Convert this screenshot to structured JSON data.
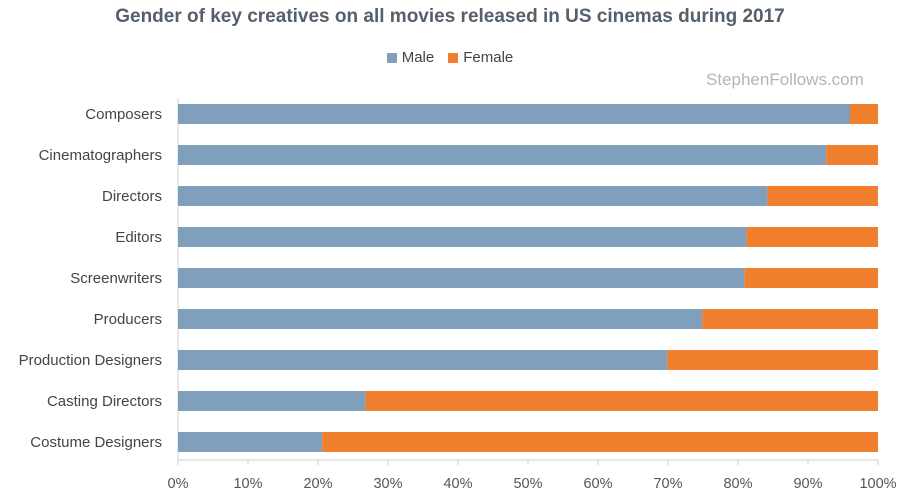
{
  "chart_data": {
    "type": "bar",
    "orientation": "horizontal",
    "stacked": true,
    "title": "Gender of key creatives on all movies released in US cinemas during 2017",
    "categories": [
      "Composers",
      "Cinematographers",
      "Directors",
      "Editors",
      "Screenwriters",
      "Producers",
      "Production Designers",
      "Casting Directors",
      "Costume Designers"
    ],
    "series": [
      {
        "name": "Male",
        "color": "#7f9fbd",
        "values": [
          96,
          92.6,
          84.2,
          81.2,
          80.9,
          74.9,
          69.9,
          26.8,
          20.6
        ]
      },
      {
        "name": "Female",
        "color": "#f07f2e",
        "values": [
          4,
          7.4,
          15.8,
          18.8,
          19.1,
          25.1,
          30.1,
          73.2,
          79.4
        ]
      }
    ],
    "xticks": [
      "0%",
      "10%",
      "20%",
      "30%",
      "40%",
      "50%",
      "60%",
      "70%",
      "80%",
      "90%",
      "100%"
    ],
    "xlim": [
      0,
      100
    ],
    "xlabel": "",
    "ylabel": "",
    "grid": false,
    "legend_position": "top-center"
  },
  "watermark": "StephenFollows.com"
}
